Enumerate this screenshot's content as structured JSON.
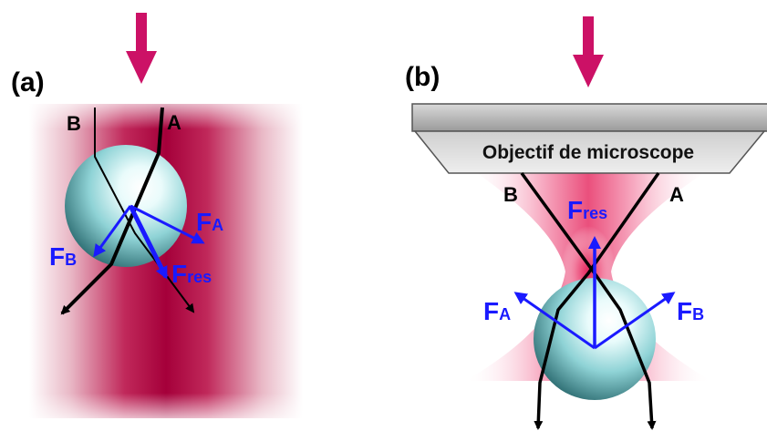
{
  "panel_a": {
    "label": "(a)",
    "ray_b": "B",
    "ray_a": "A",
    "force_a_main": "F",
    "force_a_sub": "A",
    "force_b_main": "F",
    "force_b_sub": "B",
    "force_res_main": "F",
    "force_res_sub": "res"
  },
  "panel_b": {
    "label": "(b)",
    "objective": "Objectif de microscope",
    "ray_b": "B",
    "ray_a": "A",
    "force_res_main": "F",
    "force_res_sub": "res",
    "force_a_main": "F",
    "force_a_sub": "A",
    "force_b_main": "F",
    "force_b_sub": "B"
  },
  "colors": {
    "arrow": "#cc1166",
    "beam": "#b0003a",
    "force": "#1a1aff",
    "bead": "#9fe3e6",
    "objective": "#b8b8b8"
  }
}
